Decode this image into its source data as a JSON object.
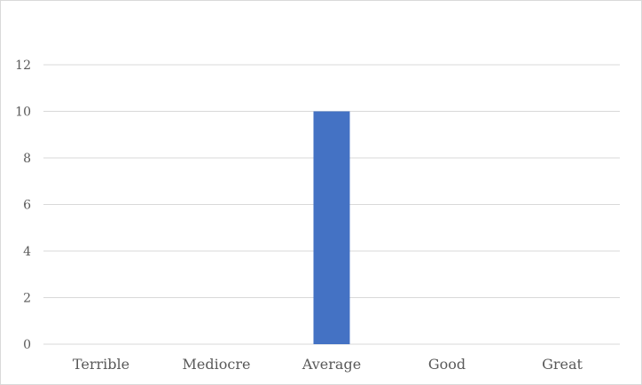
{
  "chart_data": {
    "type": "bar",
    "categories": [
      "Terrible",
      "Mediocre",
      "Average",
      "Good",
      "Great"
    ],
    "values": [
      0,
      0,
      10,
      0,
      0
    ],
    "title": "",
    "xlabel": "",
    "ylabel": "",
    "ylim": [
      0,
      12
    ],
    "yticks": [
      "0",
      "2",
      "4",
      "6",
      "8",
      "10",
      "12"
    ],
    "grid": true,
    "legend": "none",
    "bar_color": "#4472c4",
    "grid_color": "#d9d9d9"
  }
}
